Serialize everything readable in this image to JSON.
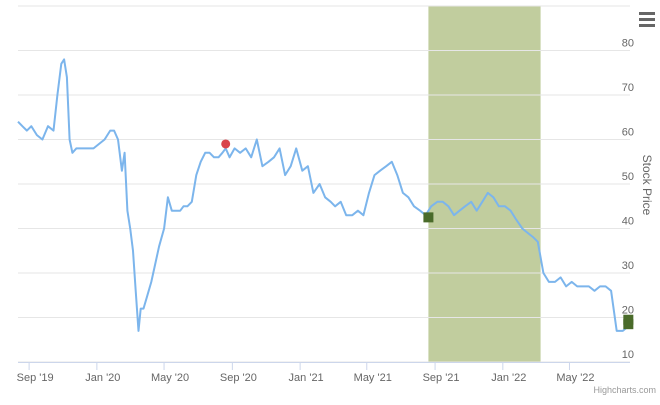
{
  "credits": "Highcharts.com",
  "menu_icon": "hamburger-menu-icon",
  "chart_data": {
    "type": "line",
    "title": "",
    "ylabel": "Stock Price",
    "xlabel": "",
    "ylim": [
      10,
      90
    ],
    "yticks": [
      10,
      20,
      30,
      40,
      50,
      60,
      70,
      80
    ],
    "xlim": [
      "2019-08-12",
      "2022-08-18"
    ],
    "xticks": [
      {
        "date": "2019-09-01",
        "label": "Sep '19"
      },
      {
        "date": "2020-01-01",
        "label": "Jan '20"
      },
      {
        "date": "2020-05-01",
        "label": "May '20"
      },
      {
        "date": "2020-09-01",
        "label": "Sep '20"
      },
      {
        "date": "2021-01-01",
        "label": "Jan '21"
      },
      {
        "date": "2021-05-01",
        "label": "May '21"
      },
      {
        "date": "2021-09-01",
        "label": "Sep '21"
      },
      {
        "date": "2022-01-01",
        "label": "Jan '22"
      },
      {
        "date": "2022-05-01",
        "label": "May '22"
      }
    ],
    "grid": true,
    "colors": {
      "line": "#7cb5ec",
      "band": "#c1cd9e",
      "red_marker": "#d9434b",
      "green_marker": "#4a6b2a",
      "grid": "#e6e6e6",
      "axis": "#ccd6eb",
      "tick_text": "#666666"
    },
    "plot_band": {
      "from": "2021-08-20",
      "to": "2022-03-10"
    },
    "markers": [
      {
        "date": "2020-08-20",
        "value": 59,
        "shape": "circle",
        "color": "#d9434b"
      },
      {
        "date": "2021-08-20",
        "value": 42.5,
        "shape": "square",
        "color": "#4a6b2a"
      },
      {
        "date": "2022-08-15",
        "value": 19.5,
        "shape": "square",
        "color": "#4a6b2a"
      },
      {
        "date": "2022-08-15",
        "value": 18.5,
        "shape": "square",
        "color": "#4a6b2a"
      }
    ],
    "series": [
      {
        "x": [
          "2019-08-12",
          "2019-08-20",
          "2019-08-28",
          "2019-09-05",
          "2019-09-15",
          "2019-09-25",
          "2019-10-05",
          "2019-10-15",
          "2019-10-22",
          "2019-10-29",
          "2019-11-03",
          "2019-11-08",
          "2019-11-13",
          "2019-11-18",
          "2019-11-25",
          "2019-12-02",
          "2019-12-10",
          "2019-12-18",
          "2019-12-26",
          "2020-01-05",
          "2020-01-15",
          "2020-01-25",
          "2020-02-01",
          "2020-02-08",
          "2020-02-15",
          "2020-02-20",
          "2020-02-25",
          "2020-03-01",
          "2020-03-06",
          "2020-03-11",
          "2020-03-16",
          "2020-03-20",
          "2020-03-25",
          "2020-04-01",
          "2020-04-08",
          "2020-04-15",
          "2020-04-22",
          "2020-05-01",
          "2020-05-08",
          "2020-05-15",
          "2020-05-22",
          "2020-05-30",
          "2020-06-05",
          "2020-06-12",
          "2020-06-20",
          "2020-06-28",
          "2020-07-06",
          "2020-07-14",
          "2020-07-22",
          "2020-07-30",
          "2020-08-07",
          "2020-08-14",
          "2020-08-20",
          "2020-08-27",
          "2020-09-05",
          "2020-09-15",
          "2020-09-25",
          "2020-10-05",
          "2020-10-15",
          "2020-10-25",
          "2020-11-05",
          "2020-11-15",
          "2020-11-25",
          "2020-12-05",
          "2020-12-15",
          "2020-12-25",
          "2021-01-05",
          "2021-01-15",
          "2021-01-25",
          "2021-02-05",
          "2021-02-15",
          "2021-02-25",
          "2021-03-05",
          "2021-03-15",
          "2021-03-25",
          "2021-04-05",
          "2021-04-15",
          "2021-04-25",
          "2021-05-05",
          "2021-05-15",
          "2021-05-25",
          "2021-06-05",
          "2021-06-15",
          "2021-06-25",
          "2021-07-05",
          "2021-07-15",
          "2021-07-25",
          "2021-08-05",
          "2021-08-15",
          "2021-08-25",
          "2021-09-05",
          "2021-09-15",
          "2021-09-25",
          "2021-10-05",
          "2021-10-15",
          "2021-10-25",
          "2021-11-05",
          "2021-11-15",
          "2021-11-25",
          "2021-12-05",
          "2021-12-15",
          "2021-12-25",
          "2022-01-05",
          "2022-01-15",
          "2022-01-25",
          "2022-02-05",
          "2022-02-15",
          "2022-02-25",
          "2022-03-05",
          "2022-03-15",
          "2022-03-25",
          "2022-04-05",
          "2022-04-15",
          "2022-04-25",
          "2022-05-05",
          "2022-05-15",
          "2022-05-25",
          "2022-06-05",
          "2022-06-15",
          "2022-06-25",
          "2022-07-05",
          "2022-07-15",
          "2022-07-25",
          "2022-08-05",
          "2022-08-15"
        ],
        "values": [
          64,
          63,
          62,
          63,
          61,
          60,
          63,
          62,
          70,
          77,
          78,
          74,
          60,
          57,
          58,
          58,
          58,
          58,
          58,
          59,
          60,
          62,
          62,
          60,
          53,
          57,
          44,
          40,
          35,
          26,
          17,
          22,
          22,
          25,
          28,
          32,
          36,
          40,
          47,
          44,
          44,
          44,
          45,
          45,
          46,
          52,
          55,
          57,
          57,
          56,
          56,
          57,
          58,
          56,
          58,
          57,
          58,
          56,
          60,
          54,
          55,
          56,
          58,
          52,
          54,
          58,
          53,
          54,
          48,
          50,
          47,
          46,
          45,
          46,
          43,
          43,
          44,
          43,
          48,
          52,
          53,
          54,
          55,
          52,
          48,
          47,
          45,
          44,
          43,
          45,
          46,
          46,
          45,
          43,
          44,
          45,
          46,
          44,
          46,
          48,
          47,
          45,
          45,
          44,
          42,
          40,
          39,
          38,
          37,
          30,
          28,
          28,
          29,
          27,
          28,
          27,
          27,
          27,
          26,
          27,
          27,
          26,
          17,
          17,
          18
        ]
      }
    ]
  }
}
